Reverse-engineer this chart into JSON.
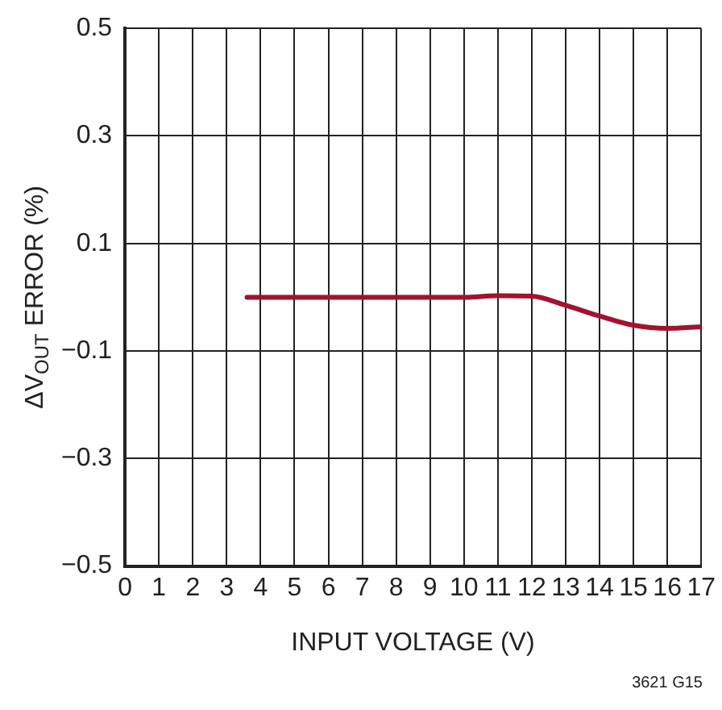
{
  "chart_data": {
    "type": "line",
    "xlabel": "INPUT VOLTAGE (V)",
    "ylabel": "ΔV$_{OUT}$ ERROR (%)",
    "annotations": [
      "3621 G15"
    ],
    "x": [
      3.6,
      10,
      11,
      12,
      13,
      14,
      15,
      16,
      17
    ],
    "series": [
      {
        "color": "#a3122f",
        "values": [
          0,
          0,
          0.003,
          0.002,
          -0.015,
          -0.035,
          -0.052,
          -0.058,
          -0.055
        ]
      }
    ],
    "xlim": [
      0,
      17
    ],
    "xticks": [
      0,
      1,
      2,
      3,
      4,
      5,
      6,
      7,
      8,
      9,
      10,
      11,
      12,
      13,
      14,
      15,
      16,
      17
    ],
    "ylim": [
      -0.5,
      0.5
    ],
    "yticks": [
      -0.5,
      -0.3,
      -0.1,
      0.1,
      0.3,
      0.5
    ],
    "grid": true,
    "legend": false,
    "marker": "none",
    "line_style": "solid"
  }
}
